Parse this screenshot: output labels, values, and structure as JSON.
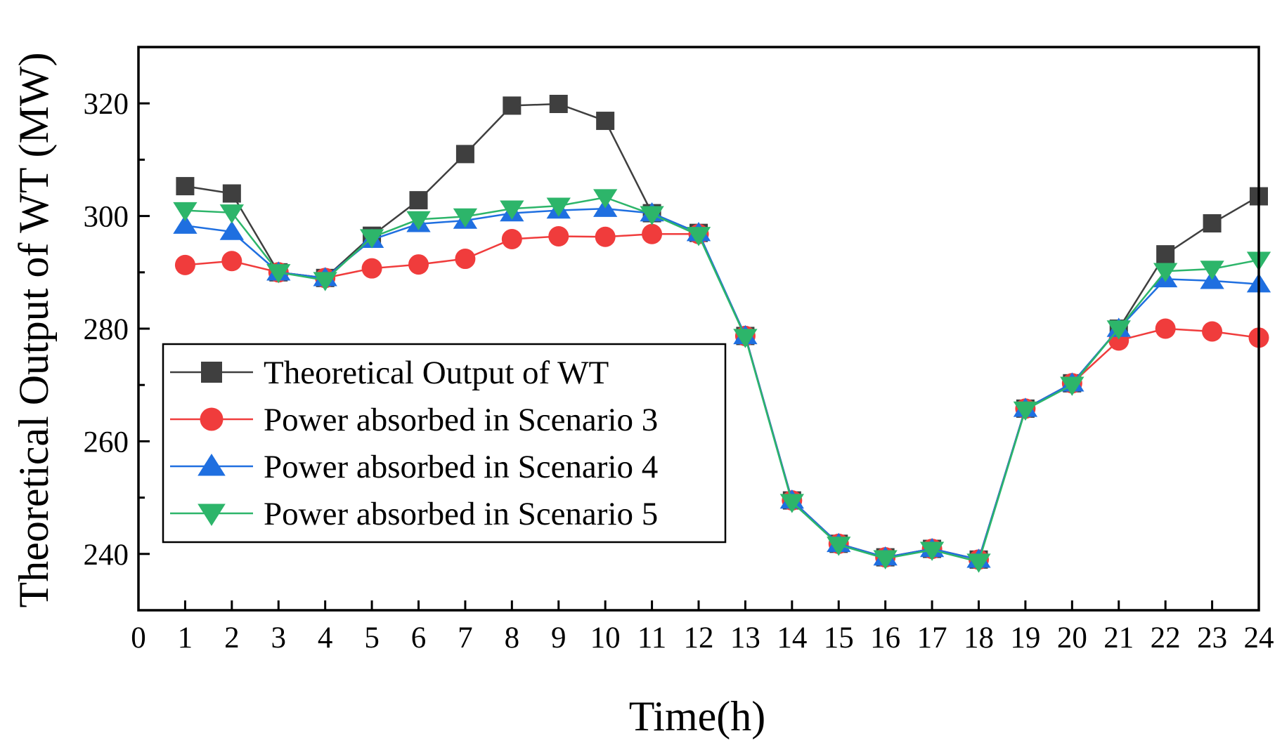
{
  "chart_data": {
    "type": "line",
    "title": "",
    "xlabel": "Time(h)",
    "ylabel": "Theoretical Output of WT (MW)",
    "xlim": [
      0,
      24
    ],
    "ylim": [
      230,
      330
    ],
    "x_ticks": [
      0,
      1,
      2,
      3,
      4,
      5,
      6,
      7,
      8,
      9,
      10,
      11,
      12,
      13,
      14,
      15,
      16,
      17,
      18,
      19,
      20,
      21,
      22,
      23,
      24
    ],
    "x_tick_labels": [
      "0",
      "1",
      "2",
      "3",
      "4",
      "5",
      "6",
      "7",
      "8",
      "9",
      "10",
      "11",
      "12",
      "13",
      "14",
      "15",
      "16",
      "17",
      "18",
      "19",
      "20",
      "21",
      "22",
      "23",
      "24"
    ],
    "y_major_ticks": [
      240,
      260,
      280,
      300,
      320
    ],
    "y_tick_labels": [
      "240",
      "260",
      "280",
      "300",
      "320"
    ],
    "y_minor_ticks": [
      250,
      270,
      290,
      310
    ],
    "grid": false,
    "legend_position": "lower-left",
    "x": [
      1,
      2,
      3,
      4,
      5,
      6,
      7,
      8,
      9,
      10,
      11,
      12,
      13,
      14,
      15,
      16,
      17,
      18,
      19,
      20,
      21,
      22,
      23,
      24
    ],
    "series": [
      {
        "name": "Theoretical Output of WT",
        "color": "#3f3f3f",
        "marker": "square",
        "values": [
          305.3,
          304.0,
          290.0,
          289.0,
          296.5,
          302.8,
          311.0,
          319.6,
          319.9,
          316.9,
          300.5,
          297.0,
          278.7,
          249.5,
          241.8,
          239.4,
          240.9,
          239.0,
          265.8,
          270.3,
          280.0,
          293.2,
          298.7,
          303.5
        ]
      },
      {
        "name": "Power absorbed in Scenario 3",
        "color": "#f03c3c",
        "marker": "circle",
        "values": [
          291.3,
          292.0,
          290.0,
          289.0,
          290.7,
          291.4,
          292.4,
          295.9,
          296.4,
          296.3,
          296.8,
          296.8,
          278.7,
          249.5,
          241.8,
          239.4,
          240.9,
          239.0,
          265.8,
          270.3,
          277.9,
          280.0,
          279.5,
          278.4
        ]
      },
      {
        "name": "Power absorbed in Scenario 4",
        "color": "#1f6fe0",
        "marker": "triangle-up",
        "values": [
          298.3,
          297.2,
          290.0,
          289.0,
          295.8,
          298.6,
          299.2,
          300.5,
          301.0,
          301.3,
          300.5,
          297.0,
          278.7,
          249.5,
          241.8,
          239.4,
          240.9,
          239.0,
          265.8,
          270.3,
          280.0,
          288.8,
          288.5,
          287.9
        ]
      },
      {
        "name": "Power absorbed in Scenario 5",
        "color": "#2db56a",
        "marker": "triangle-down",
        "values": [
          301.0,
          300.6,
          290.0,
          288.6,
          296.2,
          299.4,
          299.9,
          301.3,
          301.8,
          303.3,
          300.3,
          296.6,
          278.5,
          249.2,
          241.6,
          239.2,
          240.7,
          238.6,
          265.6,
          270.0,
          280.0,
          290.2,
          290.6,
          292.2
        ]
      }
    ]
  }
}
